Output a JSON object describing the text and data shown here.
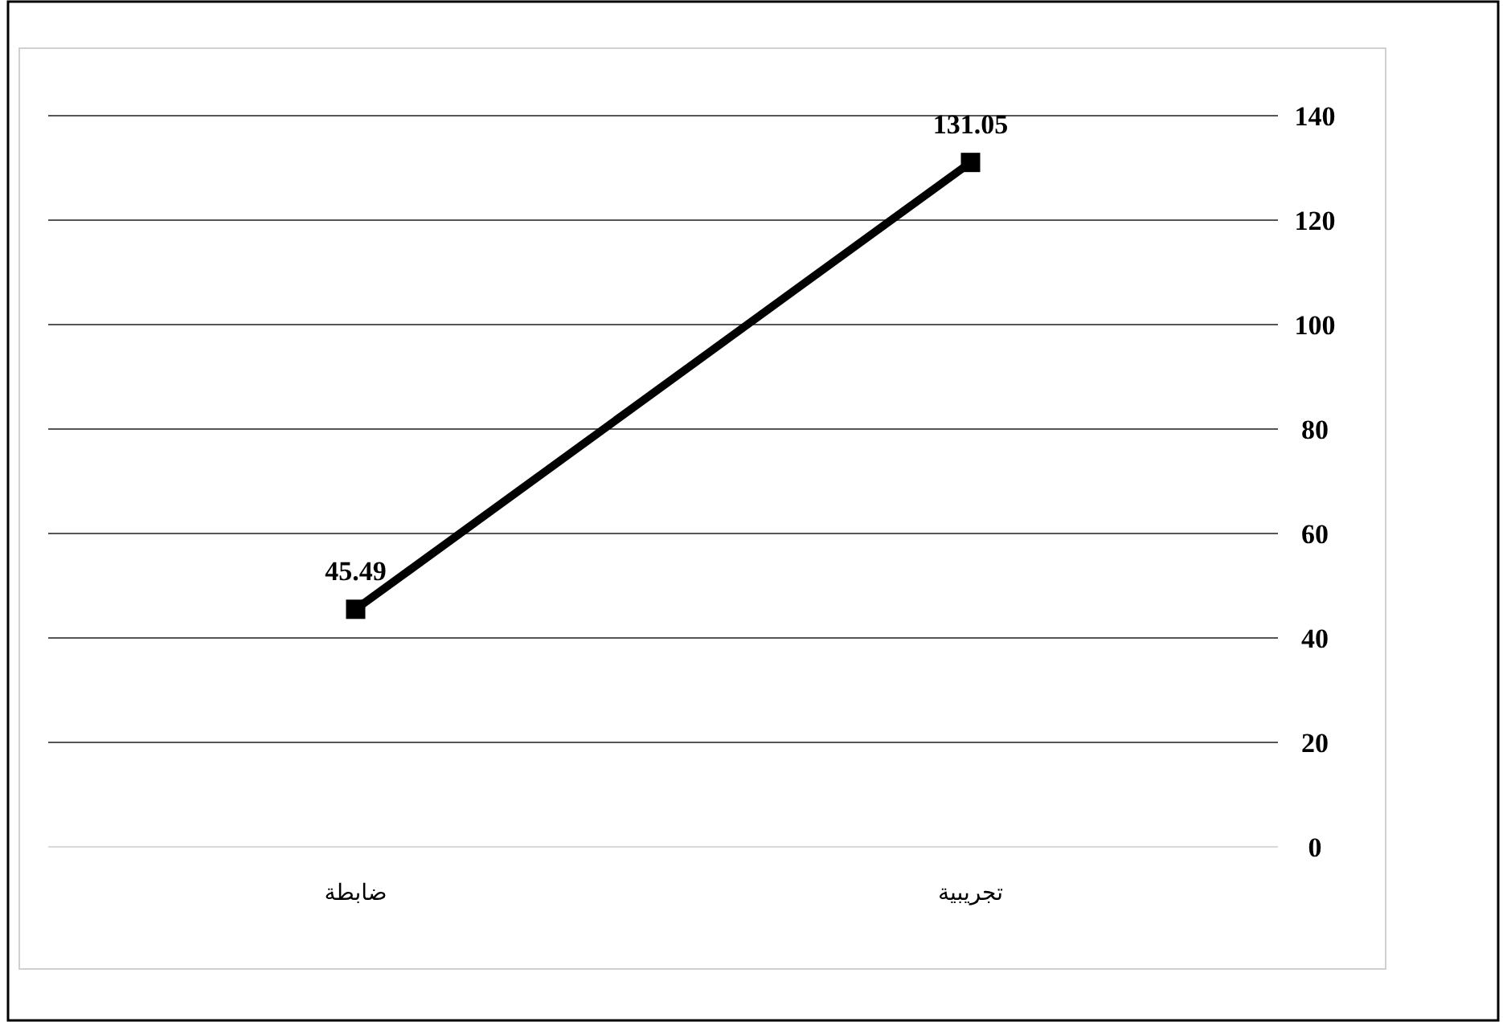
{
  "chart_data": {
    "type": "line",
    "categories": [
      "ضابطة",
      "تجريبية"
    ],
    "series": [
      {
        "color": "#000000",
        "values": [
          45.49,
          131.05
        ]
      }
    ],
    "ylim": [
      0,
      140
    ],
    "yticks": [
      0,
      20,
      40,
      60,
      80,
      100,
      120,
      140
    ],
    "grid": "y",
    "marker": "square",
    "line_style": "solid",
    "data_labels": true
  }
}
